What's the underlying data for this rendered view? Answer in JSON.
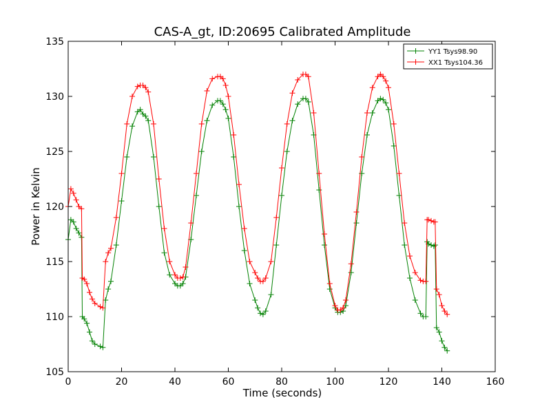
{
  "chart_data": {
    "type": "line",
    "title": "CAS-A_gt, ID:20695 Calibrated Amplitude",
    "xlabel": "Time (seconds)",
    "ylabel": "Power in Kelvin",
    "xlim": [
      0,
      160
    ],
    "ylim": [
      105,
      135
    ],
    "xticks": [
      0,
      20,
      40,
      60,
      80,
      100,
      120,
      140,
      160
    ],
    "yticks": [
      105,
      110,
      115,
      120,
      125,
      130,
      135
    ],
    "grid": false,
    "legend_position": "top-right",
    "marker": "+",
    "series": [
      {
        "name": "YY1 Tsys98.90",
        "color": "#008000",
        "x": [
          0,
          1,
          2,
          3,
          4,
          5,
          5.3,
          6,
          7,
          8,
          9,
          10,
          12,
          13,
          14,
          15,
          16,
          18,
          20,
          22,
          24,
          26,
          27,
          28,
          29,
          30,
          32,
          34,
          36,
          38,
          40,
          41,
          42,
          43,
          44,
          46,
          48,
          50,
          52,
          54,
          56,
          57,
          58,
          59,
          60,
          62,
          64,
          66,
          68,
          70,
          71,
          72,
          73,
          74,
          76,
          78,
          80,
          82,
          84,
          86,
          88,
          89,
          90,
          92,
          94,
          96,
          98,
          100,
          101,
          102,
          103,
          104,
          106,
          108,
          110,
          112,
          114,
          116,
          117,
          118,
          119,
          120,
          122,
          124,
          126,
          128,
          130,
          132,
          133,
          134,
          134.5,
          135,
          136,
          137,
          137.5,
          138,
          139,
          140,
          141,
          142
        ],
        "y": [
          117.0,
          118.8,
          118.6,
          118.0,
          117.6,
          117.2,
          110.0,
          109.8,
          109.4,
          108.6,
          107.8,
          107.5,
          107.3,
          107.2,
          111.5,
          112.5,
          113.2,
          116.5,
          120.5,
          124.5,
          127.3,
          128.6,
          128.8,
          128.4,
          128.2,
          127.8,
          124.5,
          120.0,
          115.8,
          113.8,
          113.0,
          112.8,
          112.8,
          113.0,
          113.6,
          117.0,
          121.0,
          125.0,
          127.8,
          129.2,
          129.6,
          129.6,
          129.3,
          128.8,
          128.0,
          124.5,
          120.0,
          116.0,
          113.0,
          111.5,
          110.8,
          110.3,
          110.2,
          110.5,
          112.0,
          116.5,
          121.0,
          125.0,
          127.8,
          129.3,
          129.8,
          129.8,
          129.5,
          126.5,
          121.5,
          116.5,
          112.5,
          110.8,
          110.4,
          110.4,
          110.5,
          111.0,
          114.0,
          118.5,
          123.0,
          126.5,
          128.5,
          129.6,
          129.8,
          129.7,
          129.4,
          128.8,
          125.5,
          121.0,
          116.5,
          113.5,
          111.5,
          110.3,
          110.0,
          110.0,
          116.8,
          116.6,
          116.5,
          116.4,
          116.5,
          109.0,
          108.6,
          107.8,
          107.2,
          106.9
        ]
      },
      {
        "name": "XX1 Tsys104.36",
        "color": "#ff0000",
        "x": [
          0,
          1,
          2,
          3,
          4,
          5,
          5.3,
          6,
          7,
          8,
          9,
          10,
          12,
          13,
          14,
          15,
          16,
          18,
          20,
          22,
          24,
          26,
          27,
          28,
          29,
          30,
          32,
          34,
          36,
          38,
          40,
          41,
          42,
          43,
          44,
          46,
          48,
          50,
          52,
          54,
          56,
          57,
          58,
          59,
          60,
          62,
          64,
          66,
          68,
          70,
          71,
          72,
          73,
          74,
          76,
          78,
          80,
          82,
          84,
          86,
          88,
          89,
          90,
          92,
          94,
          96,
          98,
          100,
          101,
          102,
          103,
          104,
          106,
          108,
          110,
          112,
          114,
          116,
          117,
          118,
          119,
          120,
          122,
          124,
          126,
          128,
          130,
          132,
          133,
          134,
          134.5,
          135,
          136,
          137,
          137.5,
          138,
          139,
          140,
          141,
          142
        ],
        "y": [
          120.0,
          121.6,
          121.2,
          120.6,
          120.0,
          119.8,
          113.5,
          113.4,
          113.0,
          112.2,
          111.6,
          111.2,
          110.9,
          110.8,
          115.0,
          115.8,
          116.2,
          119.0,
          123.0,
          127.5,
          130.0,
          130.9,
          131.0,
          131.0,
          130.8,
          130.4,
          127.5,
          122.5,
          118.0,
          115.0,
          113.8,
          113.5,
          113.5,
          113.6,
          114.5,
          118.5,
          123.0,
          127.5,
          130.5,
          131.6,
          131.8,
          131.8,
          131.6,
          131.0,
          130.0,
          126.5,
          122.0,
          118.0,
          115.0,
          114.0,
          113.5,
          113.2,
          113.2,
          113.5,
          115.0,
          119.0,
          123.5,
          127.5,
          130.3,
          131.5,
          132.0,
          132.0,
          131.8,
          128.5,
          123.0,
          117.5,
          113.0,
          111.0,
          110.6,
          110.6,
          110.8,
          111.5,
          114.8,
          119.5,
          124.5,
          128.5,
          130.8,
          131.8,
          132.0,
          131.8,
          131.4,
          130.8,
          127.5,
          123.0,
          118.5,
          115.5,
          114.0,
          113.3,
          113.2,
          113.2,
          118.8,
          118.8,
          118.7,
          118.6,
          118.6,
          112.5,
          112.0,
          111.0,
          110.5,
          110.2
        ]
      }
    ]
  }
}
